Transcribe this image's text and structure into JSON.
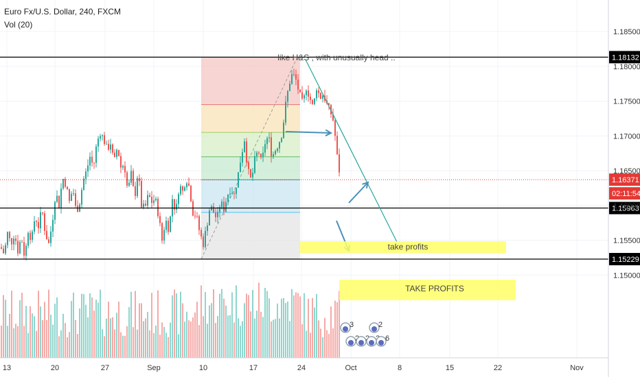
{
  "header": {
    "symbol": "Euro Fx/U.S. Dollar, 240, FXCM",
    "indicator": "Vol (20)"
  },
  "colors": {
    "up": "#26a69a",
    "down": "#ef5350",
    "vol_up": "#8fd5cd",
    "vol_down": "#f4a9a6",
    "level_line": "#000000",
    "price_line": "#e53935",
    "trend": "#26a69a",
    "arrow": "#4a90b8",
    "highlight": "#ffff66"
  },
  "chart_data": {
    "type": "candlestick",
    "title": "Euro Fx/U.S. Dollar, 240, FXCM",
    "y_axis": {
      "ticks": [
        "1.18500",
        "1.18000",
        "1.17500",
        "1.17000",
        "1.16500",
        "1.16000",
        "1.15500",
        "1.15000"
      ]
    },
    "x_axis": {
      "ticks": [
        "13",
        "20",
        "27",
        "Sep",
        "10",
        "17",
        "24",
        "Oct",
        "8",
        "15",
        "22",
        "Nov"
      ]
    },
    "ylim": [
      1.1445,
      1.1895
    ],
    "close_path": [
      [
        0,
        1.154
      ],
      [
        5,
        1.153
      ],
      [
        10,
        1.156
      ],
      [
        15,
        1.1545
      ],
      [
        20,
        1.156
      ],
      [
        25,
        1.1535
      ],
      [
        30,
        1.1555
      ],
      [
        35,
        1.1525
      ],
      [
        40,
        1.1565
      ],
      [
        45,
        1.155
      ],
      [
        50,
        1.1585
      ],
      [
        55,
        1.157
      ],
      [
        60,
        1.1595
      ],
      [
        65,
        1.156
      ],
      [
        70,
        1.1545
      ],
      [
        75,
        1.1575
      ],
      [
        80,
        1.162
      ],
      [
        85,
        1.16
      ],
      [
        90,
        1.164
      ],
      [
        95,
        1.163
      ],
      [
        100,
        1.1605
      ],
      [
        105,
        1.1625
      ],
      [
        110,
        1.159
      ],
      [
        115,
        1.1605
      ],
      [
        120,
        1.1635
      ],
      [
        125,
        1.165
      ],
      [
        130,
        1.167
      ],
      [
        135,
        1.1655
      ],
      [
        140,
        1.169
      ],
      [
        145,
        1.1705
      ],
      [
        150,
        1.1695
      ],
      [
        155,
        1.168
      ],
      [
        160,
        1.169
      ],
      [
        165,
        1.166
      ],
      [
        170,
        1.1685
      ],
      [
        175,
        1.1655
      ],
      [
        180,
        1.166
      ],
      [
        185,
        1.162
      ],
      [
        190,
        1.1645
      ],
      [
        195,
        1.161
      ],
      [
        200,
        1.165
      ],
      [
        205,
        1.16
      ],
      [
        210,
        1.1595
      ],
      [
        215,
        1.1615
      ],
      [
        220,
        1.1605
      ],
      [
        225,
        1.161
      ],
      [
        230,
        1.1585
      ],
      [
        235,
        1.155
      ],
      [
        240,
        1.158
      ],
      [
        245,
        1.1565
      ],
      [
        250,
        1.161
      ],
      [
        255,
        1.159
      ],
      [
        260,
        1.163
      ],
      [
        265,
        1.162
      ],
      [
        270,
        1.164
      ],
      [
        275,
        1.1625
      ],
      [
        280,
        1.159
      ],
      [
        285,
        1.1585
      ],
      [
        290,
        1.156
      ],
      [
        295,
        1.1545
      ],
      [
        300,
        1.157
      ],
      [
        305,
        1.16
      ],
      [
        310,
        1.159
      ],
      [
        315,
        1.158
      ],
      [
        320,
        1.1605
      ],
      [
        325,
        1.1595
      ],
      [
        330,
        1.1615
      ],
      [
        335,
        1.1625
      ],
      [
        340,
        1.1615
      ],
      [
        345,
        1.164
      ],
      [
        350,
        1.167
      ],
      [
        355,
        1.1695
      ],
      [
        360,
        1.165
      ],
      [
        365,
        1.1635
      ],
      [
        370,
        1.1665
      ],
      [
        375,
        1.168
      ],
      [
        380,
        1.166
      ],
      [
        385,
        1.169
      ],
      [
        390,
        1.17
      ],
      [
        395,
        1.167
      ],
      [
        400,
        1.168
      ],
      [
        405,
        1.169
      ],
      [
        410,
        1.1705
      ],
      [
        415,
        1.1745
      ],
      [
        420,
        1.1775
      ],
      [
        425,
        1.179
      ],
      [
        430,
        1.178
      ],
      [
        435,
        1.176
      ],
      [
        440,
        1.1745
      ],
      [
        445,
        1.177
      ],
      [
        450,
        1.1755
      ],
      [
        455,
        1.174
      ],
      [
        460,
        1.177
      ],
      [
        465,
        1.1755
      ],
      [
        470,
        1.176
      ],
      [
        475,
        1.1745
      ],
      [
        480,
        1.1735
      ],
      [
        485,
        1.172
      ],
      [
        490,
        1.167
      ],
      [
        495,
        1.1637
      ]
    ],
    "levels": [
      {
        "price": 1.18132,
        "label": "1.18132"
      },
      {
        "price": 1.15963,
        "label": "1.15963"
      },
      {
        "price": 1.15229,
        "label": "1.15229"
      }
    ],
    "current_price": {
      "price": 1.16371,
      "label": "1.16371",
      "countdown": "02:11:54"
    },
    "fib_levels": [
      1.1813,
      1.1745,
      1.1705,
      1.167,
      1.1637,
      1.159,
      1.1523
    ],
    "annotations": [
      "like H&S , with unusually head ..",
      "take profits",
      "TAKE PROFITS"
    ],
    "events": [
      "3",
      "2",
      "2",
      "2",
      "2",
      "6"
    ]
  }
}
